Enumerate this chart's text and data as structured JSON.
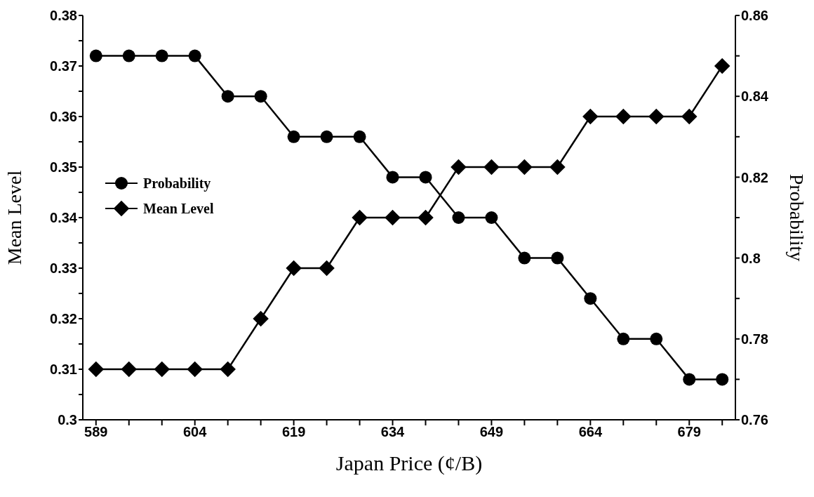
{
  "chart_data": {
    "type": "line",
    "xlabel": "Japan Price (¢/B)",
    "ylabel": "Mean Level",
    "y2label": "Probability",
    "x": [
      589,
      594,
      599,
      604,
      609,
      614,
      619,
      624,
      629,
      634,
      639,
      644,
      649,
      654,
      659,
      664,
      669,
      674,
      679,
      684
    ],
    "series": [
      {
        "name": "Probability",
        "color": "#000000",
        "marker": "circle",
        "axis": "y2",
        "values": [
          0.85,
          0.85,
          0.85,
          0.85,
          0.84,
          0.84,
          0.83,
          0.83,
          0.83,
          0.82,
          0.82,
          0.81,
          0.81,
          0.8,
          0.8,
          0.79,
          0.78,
          0.78,
          0.77,
          0.77
        ]
      },
      {
        "name": "Mean Level",
        "color": "#000000",
        "marker": "diamond",
        "values": [
          0.31,
          0.31,
          0.31,
          0.31,
          0.31,
          0.32,
          0.33,
          0.33,
          0.34,
          0.34,
          0.34,
          0.35,
          0.35,
          0.35,
          0.35,
          0.36,
          0.36,
          0.36,
          0.36,
          0.37
        ]
      }
    ],
    "xlim": [
      587,
      686
    ],
    "xticks": [
      589,
      {
        "value": 594,
        "label": null
      },
      {
        "value": 599,
        "label": null
      },
      604,
      {
        "value": 609,
        "label": null
      },
      {
        "value": 614,
        "label": null
      },
      619,
      {
        "value": 624,
        "label": null
      },
      {
        "value": 629,
        "label": null
      },
      634,
      {
        "value": 639,
        "label": null
      },
      {
        "value": 644,
        "label": null
      },
      649,
      {
        "value": 654,
        "label": null
      },
      {
        "value": 659,
        "label": null
      },
      664,
      {
        "value": 669,
        "label": null
      },
      {
        "value": 674,
        "label": null
      },
      679,
      {
        "value": 684,
        "label": null
      }
    ],
    "ylim": [
      0.3,
      0.38
    ],
    "yticks": [
      {
        "value": 0.3,
        "label": "0.3"
      },
      {
        "value": 0.305,
        "label": null
      },
      0.31,
      {
        "value": 0.315,
        "label": null
      },
      0.32,
      {
        "value": 0.325,
        "label": null
      },
      0.33,
      {
        "value": 0.335,
        "label": null
      },
      0.34,
      {
        "value": 0.345,
        "label": null
      },
      0.35,
      {
        "value": 0.355,
        "label": null
      },
      0.36,
      {
        "value": 0.365,
        "label": null
      },
      0.37,
      {
        "value": 0.375,
        "label": null
      },
      0.38
    ],
    "y2lim": [
      0.76,
      0.86
    ],
    "y2ticks": [
      0.76,
      {
        "value": 0.77,
        "label": null
      },
      0.78,
      {
        "value": 0.79,
        "label": null
      },
      {
        "value": 0.8,
        "label": "0.8"
      },
      {
        "value": 0.81,
        "label": null
      },
      0.82,
      {
        "value": 0.83,
        "label": null
      },
      0.84,
      {
        "value": 0.85,
        "label": null
      },
      0.86
    ],
    "legend": "left",
    "grid": false,
    "line_style": "solid"
  }
}
